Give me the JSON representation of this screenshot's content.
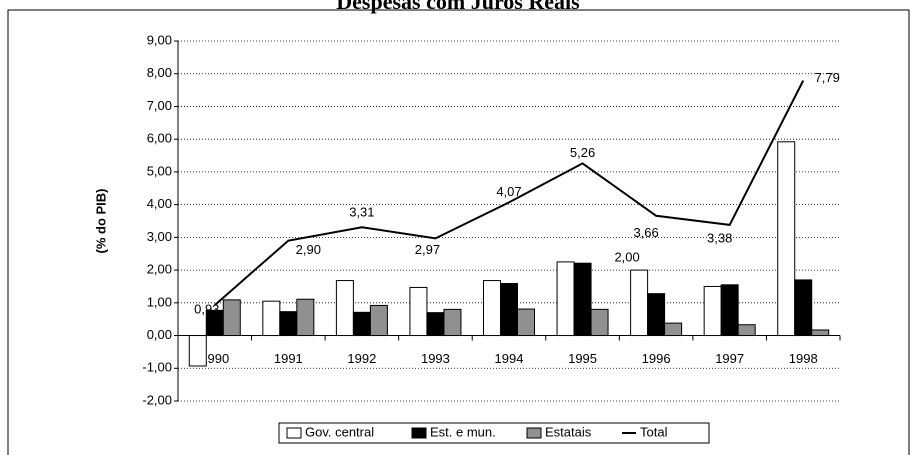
{
  "chart_data": {
    "type": "bar-line",
    "title": "Despesas com Juros Reais",
    "y_label": "(% do PIB)",
    "categories": [
      "1990",
      "1991",
      "1992",
      "1993",
      "1994",
      "1995",
      "1996",
      "1997",
      "1998"
    ],
    "series": [
      {
        "name": "Gov. central",
        "type": "bar",
        "color": "#ffffff",
        "values": [
          -0.93,
          1.05,
          1.68,
          1.47,
          1.68,
          2.25,
          2.0,
          1.5,
          5.92
        ],
        "value_labels": [
          null,
          null,
          null,
          null,
          null,
          null,
          "2,00",
          null,
          null
        ]
      },
      {
        "name": "Est. e mun.",
        "type": "bar",
        "color": "#000000",
        "values": [
          0.77,
          0.73,
          0.71,
          0.7,
          1.59,
          2.21,
          1.28,
          1.55,
          1.7
        ]
      },
      {
        "name": "Estatais",
        "type": "bar",
        "color": "#909090",
        "values": [
          1.09,
          1.11,
          0.92,
          0.8,
          0.81,
          0.8,
          0.38,
          0.33,
          0.17
        ]
      },
      {
        "name": "Total",
        "type": "line",
        "color": "#000000",
        "values": [
          0.93,
          2.9,
          3.31,
          2.97,
          4.07,
          5.26,
          3.66,
          3.38,
          7.79
        ],
        "value_labels": [
          "0,93",
          "2,90",
          "3,31",
          "2,97",
          "4,07",
          "5,26",
          "3,66",
          "3,38",
          "7,79"
        ]
      }
    ],
    "ylim": [
      -2,
      9
    ],
    "yticks": [
      {
        "value": -2,
        "label": "-2,00"
      },
      {
        "value": -1,
        "label": "-1,00"
      },
      {
        "value": 0,
        "label": "0,00"
      },
      {
        "value": 1,
        "label": "1,00"
      },
      {
        "value": 2,
        "label": "2,00"
      },
      {
        "value": 3,
        "label": "3,00"
      },
      {
        "value": 4,
        "label": "4,00"
      },
      {
        "value": 5,
        "label": "5,00"
      },
      {
        "value": 6,
        "label": "6,00"
      },
      {
        "value": 7,
        "label": "7,00"
      },
      {
        "value": 8,
        "label": "8,00"
      },
      {
        "value": 9,
        "label": "9,00"
      }
    ],
    "grid": true,
    "legend": "bottom"
  }
}
